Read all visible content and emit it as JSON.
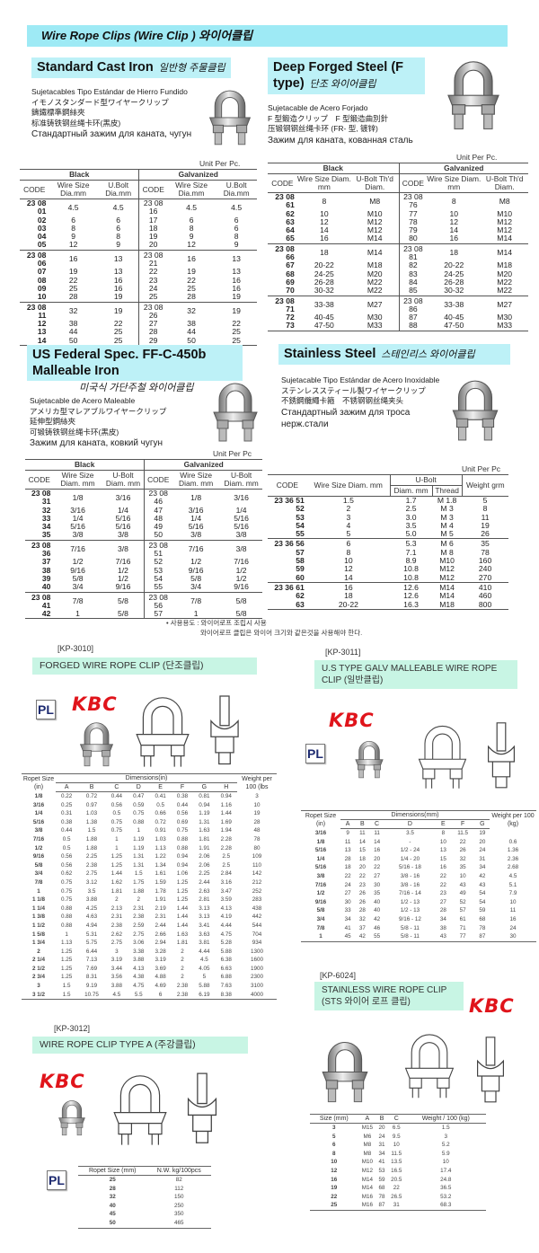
{
  "banner": {
    "title": "Wire Rope Clips  (Wire Clip ) 와이어클립"
  },
  "sections": [
    {
      "title": "Standard Cast Iron",
      "title_ko": "일반형 주물클립",
      "desc": [
        "Sujetacables Tipo Estándar de Hierro Fundido",
        "イモノスタンダード型ワイヤークリップ",
        "鑄鐵標準鋼絲夾",
        "标准铸铁钢丝绳卡环(黑皮)",
        "Стандартный зажим для каната, чугун"
      ],
      "unit": "Unit Per Pc.",
      "groups": [
        "Black",
        "Galvanized"
      ],
      "headers": [
        "CODE",
        "Wire Size Dia.mm",
        "U.Bolt Dia.mm",
        "CODE",
        "Wire Size Dia.mm",
        "U.Bolt Dia.mm"
      ],
      "blocks": [
        [
          [
            "23 08 01",
            "4.5",
            "4.5",
            "23 08 16",
            "4.5",
            "4.5"
          ],
          [
            "02",
            "6",
            "6",
            "17",
            "6",
            "6"
          ],
          [
            "03",
            "8",
            "6",
            "18",
            "8",
            "6"
          ],
          [
            "04",
            "9",
            "8",
            "19",
            "9",
            "8"
          ],
          [
            "05",
            "12",
            "9",
            "20",
            "12",
            "9"
          ]
        ],
        [
          [
            "23 08 06",
            "16",
            "13",
            "23 08 21",
            "16",
            "13"
          ],
          [
            "07",
            "19",
            "13",
            "22",
            "19",
            "13"
          ],
          [
            "08",
            "22",
            "16",
            "23",
            "22",
            "16"
          ],
          [
            "09",
            "25",
            "16",
            "24",
            "25",
            "16"
          ],
          [
            "10",
            "28",
            "19",
            "25",
            "28",
            "19"
          ]
        ],
        [
          [
            "23 08 11",
            "32",
            "19",
            "23 08 26",
            "32",
            "19"
          ],
          [
            "12",
            "38",
            "22",
            "27",
            "38",
            "22"
          ],
          [
            "13",
            "44",
            "25",
            "28",
            "44",
            "25"
          ],
          [
            "14",
            "50",
            "25",
            "29",
            "50",
            "25"
          ]
        ]
      ]
    },
    {
      "title": "Deep Forged Steel (F type)",
      "title_ko": "단조 와이어클립",
      "desc": [
        "Sujetacable de Acero Forjado",
        "F 型鍛造クリップ　F 型鍛造曲別針",
        "压锻钢钢丝绳卡环 (FR- 型, 镀锌)",
        "Зажим для каната, кованная сталь"
      ],
      "unit": "Unit Per Pc.",
      "groups": [
        "Black",
        "Galvanized"
      ],
      "headers": [
        "CODE",
        "Wire Size Diam. mm",
        "U-Bolt Th'd Diam.",
        "CODE",
        "Wire Size Diam. mm",
        "U-Bolt Th'd Diam."
      ],
      "blocks": [
        [
          [
            "23 08 61",
            "8",
            "M8",
            "23 08 76",
            "8",
            "M8"
          ],
          [
            "62",
            "10",
            "M10",
            "77",
            "10",
            "M10"
          ],
          [
            "63",
            "12",
            "M12",
            "78",
            "12",
            "M12"
          ],
          [
            "64",
            "14",
            "M12",
            "79",
            "14",
            "M12"
          ],
          [
            "65",
            "16",
            "M14",
            "80",
            "16",
            "M14"
          ]
        ],
        [
          [
            "23 08 66",
            "18",
            "M14",
            "23 08 81",
            "18",
            "M14"
          ],
          [
            "67",
            "20-22",
            "M18",
            "82",
            "20-22",
            "M18"
          ],
          [
            "68",
            "24-25",
            "M20",
            "83",
            "24-25",
            "M20"
          ],
          [
            "69",
            "26-28",
            "M22",
            "84",
            "26-28",
            "M22"
          ],
          [
            "70",
            "30-32",
            "M22",
            "85",
            "30-32",
            "M22"
          ]
        ],
        [
          [
            "23 08 71",
            "33-38",
            "M27",
            "23 08 86",
            "33-38",
            "M27"
          ],
          [
            "72",
            "40-45",
            "M30",
            "87",
            "40-45",
            "M30"
          ],
          [
            "73",
            "47-50",
            "M33",
            "88",
            "47-50",
            "M33"
          ]
        ]
      ]
    },
    {
      "title": "US Federal Spec. FF-C-450b Malleable Iron",
      "title_ko": "미국식 가단주철 와이어클립",
      "desc": [
        "Sujetacable de Acero Maleable",
        "アメリカ型マレアブルワイヤークリップ",
        "延伸型鋼絲夾",
        "可锻铸铁钢丝绳卡环(黑皮)",
        "Зажим для каната, ковкий чугун"
      ],
      "unit": "Unit Per Pc",
      "groups": [
        "Black",
        "Galvanized"
      ],
      "headers": [
        "CODE",
        "Wire Size Diam. mm",
        "U-Bolt Diam. mm",
        "CODE",
        "Wire Size Diam. mm",
        "U-Bolt Diam. mm"
      ],
      "blocks": [
        [
          [
            "23 08 31",
            "1/8",
            "3/16",
            "23 08 46",
            "1/8",
            "3/16"
          ],
          [
            "32",
            "3/16",
            "1/4",
            "47",
            "3/16",
            "1/4"
          ],
          [
            "33",
            "1/4",
            "5/16",
            "48",
            "1/4",
            "5/16"
          ],
          [
            "34",
            "5/16",
            "5/16",
            "49",
            "5/16",
            "5/16"
          ],
          [
            "35",
            "3/8",
            "3/8",
            "50",
            "3/8",
            "3/8"
          ]
        ],
        [
          [
            "23 08 36",
            "7/16",
            "3/8",
            "23 08 51",
            "7/16",
            "3/8"
          ],
          [
            "37",
            "1/2",
            "7/16",
            "52",
            "1/2",
            "7/16"
          ],
          [
            "38",
            "9/16",
            "1/2",
            "53",
            "9/16",
            "1/2"
          ],
          [
            "39",
            "5/8",
            "1/2",
            "54",
            "5/8",
            "1/2"
          ],
          [
            "40",
            "3/4",
            "9/16",
            "55",
            "3/4",
            "9/16"
          ]
        ],
        [
          [
            "23 08 41",
            "7/8",
            "5/8",
            "23 08 56",
            "7/8",
            "5/8"
          ],
          [
            "42",
            "1",
            "5/8",
            "57",
            "1",
            "5/8"
          ]
        ]
      ]
    },
    {
      "title": "Stainless Steel",
      "title_ko": "스테인리스 와이어클립",
      "desc": [
        "Sujetacable Tipo Estándar de Acero Inoxidable",
        "ステンレススティール製ワイヤークリップ",
        "不銹鋼纜繩卡箍　不锈钢钢丝绳夹头",
        "Стандартный зажим для троса нерж.стали"
      ],
      "unit": "Unit Per Pc",
      "headers": {
        "code": "CODE",
        "wire": "Wire Size Diam. mm",
        "ubolt": "U-Bolt",
        "ubolt_diam": "Diam. mm",
        "thread": "Thread",
        "weight": "Weight grm"
      },
      "blocks": [
        [
          [
            "23 36 51",
            "1.5",
            "1.7",
            "M 1.8",
            "5"
          ],
          [
            "52",
            "2",
            "2.5",
            "M 3",
            "8"
          ],
          [
            "53",
            "3",
            "3.0",
            "M 3",
            "11"
          ],
          [
            "54",
            "4",
            "3.5",
            "M 4",
            "19"
          ],
          [
            "55",
            "5",
            "5.0",
            "M 5",
            "26"
          ]
        ],
        [
          [
            "23 36 56",
            "6",
            "5.3",
            "M 6",
            "35"
          ],
          [
            "57",
            "8",
            "7.1",
            "M 8",
            "78"
          ],
          [
            "58",
            "10",
            "8.9",
            "M10",
            "160"
          ],
          [
            "59",
            "12",
            "10.8",
            "M12",
            "240"
          ],
          [
            "60",
            "14",
            "10.8",
            "M12",
            "270"
          ]
        ],
        [
          [
            "23 36 61",
            "16",
            "12.6",
            "M14",
            "410"
          ],
          [
            "62",
            "18",
            "12.6",
            "M14",
            "460"
          ],
          [
            "63",
            "20-22",
            "16.3",
            "M18",
            "800"
          ]
        ]
      ]
    }
  ],
  "note": {
    "line1": "• 사용용도 : 와이어로프 조립시 사용",
    "line2": "와이어로프 클립은 와이어 크기와 같은것을 사용해야 한다."
  },
  "logos": {
    "kbc": "KBC",
    "pl": "PL"
  },
  "kp3010": {
    "code": "[KP-3010]",
    "title": "FORGED WIRE ROPE CLIP (단조클립)",
    "size_header": "Ropet Size (in)",
    "dims_header": "Dimensions(in)",
    "weight_header": "Weight per 100 (lbs",
    "cols": [
      "A",
      "B",
      "C",
      "D",
      "E",
      "F",
      "G",
      "H"
    ],
    "rows": [
      [
        "1/8",
        "0.22",
        "0.72",
        "0.44",
        "0.47",
        "0.41",
        "0.38",
        "0.81",
        "0.94",
        "3"
      ],
      [
        "3/16",
        "0.25",
        "0.97",
        "0.56",
        "0.59",
        "0.5",
        "0.44",
        "0.94",
        "1.16",
        "10"
      ],
      [
        "1/4",
        "0.31",
        "1.03",
        "0.5",
        "0.75",
        "0.66",
        "0.56",
        "1.19",
        "1.44",
        "19"
      ],
      [
        "5/16",
        "0.38",
        "1.38",
        "0.75",
        "0.88",
        "0.72",
        "0.69",
        "1.31",
        "1.69",
        "28"
      ],
      [
        "3/8",
        "0.44",
        "1.5",
        "0.75",
        "1",
        "0.91",
        "0.75",
        "1.63",
        "1.94",
        "48"
      ],
      [
        "7/16",
        "0.5",
        "1.88",
        "1",
        "1.19",
        "1.03",
        "0.88",
        "1.81",
        "2.28",
        "78"
      ],
      [
        "1/2",
        "0.5",
        "1.88",
        "1",
        "1.19",
        "1.13",
        "0.88",
        "1.91",
        "2.28",
        "80"
      ],
      [
        "9/16",
        "0.56",
        "2.25",
        "1.25",
        "1.31",
        "1.22",
        "0.94",
        "2.06",
        "2.5",
        "109"
      ],
      [
        "5/8",
        "0.56",
        "2.38",
        "1.25",
        "1.31",
        "1.34",
        "0.94",
        "2.06",
        "2.5",
        "110"
      ],
      [
        "3/4",
        "0.62",
        "2.75",
        "1.44",
        "1.5",
        "1.61",
        "1.06",
        "2.25",
        "2.84",
        "142"
      ],
      [
        "7/8",
        "0.75",
        "3.12",
        "1.62",
        "1.75",
        "1.59",
        "1.25",
        "2.44",
        "3.16",
        "212"
      ],
      [
        "1",
        "0.75",
        "3.5",
        "1.81",
        "1.88",
        "1.78",
        "1.25",
        "2.63",
        "3.47",
        "252"
      ],
      [
        "1 1/8",
        "0.75",
        "3.88",
        "2",
        "2",
        "1.91",
        "1.25",
        "2.81",
        "3.59",
        "283"
      ],
      [
        "1 1/4",
        "0.88",
        "4.25",
        "2.13",
        "2.31",
        "2.19",
        "1.44",
        "3.13",
        "4.13",
        "438"
      ],
      [
        "1 3/8",
        "0.88",
        "4.63",
        "2.31",
        "2.38",
        "2.31",
        "1.44",
        "3.13",
        "4.19",
        "442"
      ],
      [
        "1 1/2",
        "0.88",
        "4.94",
        "2.38",
        "2.59",
        "2.44",
        "1.44",
        "3.41",
        "4.44",
        "544"
      ],
      [
        "1 5/8",
        "1",
        "5.31",
        "2.62",
        "2.75",
        "2.66",
        "1.63",
        "3.63",
        "4.75",
        "704"
      ],
      [
        "1 3/4",
        "1.13",
        "5.75",
        "2.75",
        "3.06",
        "2.94",
        "1.81",
        "3.81",
        "5.28",
        "934"
      ],
      [
        "2",
        "1.25",
        "6.44",
        "3",
        "3.38",
        "3.28",
        "2",
        "4.44",
        "5.88",
        "1300"
      ],
      [
        "2 1/4",
        "1.25",
        "7.13",
        "3.19",
        "3.88",
        "3.19",
        "2",
        "4.5",
        "6.38",
        "1600"
      ],
      [
        "2 1/2",
        "1.25",
        "7.69",
        "3.44",
        "4.13",
        "3.69",
        "2",
        "4.05",
        "6.63",
        "1900"
      ],
      [
        "2 3/4",
        "1.25",
        "8.31",
        "3.56",
        "4.38",
        "4.88",
        "2",
        "5",
        "6.88",
        "2300"
      ],
      [
        "3",
        "1.5",
        "9.19",
        "3.88",
        "4.75",
        "4.69",
        "2.38",
        "5.88",
        "7.63",
        "3100"
      ],
      [
        "3 1/2",
        "1.5",
        "10.75",
        "4.5",
        "5.5",
        "6",
        "2.38",
        "6.19",
        "8.38",
        "4000"
      ]
    ]
  },
  "kp3011": {
    "code": "[KP-3011]",
    "title": "U.S TYPE GALV MALLEABLE WIRE ROPE CLIP (일반클립)",
    "size_header": "Ropet Size (in)",
    "dims_header": "Dimensions(mm)",
    "weight_header": "Weight per 100 (kg)",
    "cols": [
      "A",
      "B",
      "C",
      "D",
      "E",
      "F",
      "G"
    ],
    "rows": [
      [
        "3/16",
        "9",
        "11",
        "11",
        "3.5",
        "8",
        "11.5",
        "19",
        ""
      ],
      [
        "1/8",
        "11",
        "14",
        "14",
        "-",
        "10",
        "22",
        "20",
        "0.6"
      ],
      [
        "5/16",
        "13",
        "15",
        "16",
        "1/2 - 24",
        "13",
        "26",
        "24",
        "1.36"
      ],
      [
        "1/4",
        "28",
        "18",
        "20",
        "1/4 - 20",
        "15",
        "32",
        "31",
        "2.36"
      ],
      [
        "5/16",
        "18",
        "20",
        "22",
        "5/16 - 18",
        "16",
        "35",
        "34",
        "2.68"
      ],
      [
        "3/8",
        "22",
        "22",
        "27",
        "3/8 - 16",
        "22",
        "10",
        "42",
        "4.5"
      ],
      [
        "7/16",
        "24",
        "23",
        "30",
        "3/8 - 16",
        "22",
        "43",
        "43",
        "5.1"
      ],
      [
        "1/2",
        "27",
        "26",
        "35",
        "7/16 - 14",
        "23",
        "49",
        "54",
        "7.9"
      ],
      [
        "9/16",
        "30",
        "26",
        "40",
        "1/2 - 13",
        "27",
        "52",
        "54",
        "10"
      ],
      [
        "5/8",
        "33",
        "28",
        "40",
        "1/2 - 13",
        "28",
        "57",
        "59",
        "11"
      ],
      [
        "3/4",
        "34",
        "32",
        "42",
        "9/16 - 12",
        "34",
        "61",
        "68",
        "16"
      ],
      [
        "7/8",
        "41",
        "37",
        "46",
        "5/8 - 11",
        "38",
        "71",
        "78",
        "24"
      ],
      [
        "1",
        "45",
        "42",
        "55",
        "5/8 - 11",
        "43",
        "77",
        "87",
        "30"
      ]
    ]
  },
  "kp6024": {
    "code": "[KP-6024]",
    "title": "STAINLESS WIRE ROPE CLIP",
    "title2": "(STS 와이어 로프 클립)",
    "headers": [
      "Size (mm)",
      "A",
      "B",
      "C",
      "Weight / 100 (kg)"
    ],
    "rows": [
      [
        "3",
        "M15",
        "20",
        "6.5",
        "1.5"
      ],
      [
        "5",
        "M6",
        "24",
        "9.5",
        "3"
      ],
      [
        "6",
        "M8",
        "31",
        "10",
        "5.2"
      ],
      [
        "8",
        "M8",
        "34",
        "11.5",
        "5.9"
      ],
      [
        "10",
        "M10",
        "41",
        "13.5",
        "10"
      ],
      [
        "12",
        "M12",
        "53",
        "16.5",
        "17.4"
      ],
      [
        "16",
        "M14",
        "59",
        "20.5",
        "24.8"
      ],
      [
        "19",
        "M14",
        "68",
        "22",
        "36.5"
      ],
      [
        "22",
        "M16",
        "78",
        "26.5",
        "53.2"
      ],
      [
        "25",
        "M16",
        "87",
        "31",
        "68.3"
      ]
    ]
  },
  "kp3012": {
    "code": "[KP-3012]",
    "title": "WIRE ROPE CLIP TYPE A (주강클립)",
    "headers": [
      "Ropet Size (mm)",
      "N.W. kg/100pcs"
    ],
    "rows": [
      [
        "25",
        "82"
      ],
      [
        "28",
        "112"
      ],
      [
        "32",
        "150"
      ],
      [
        "40",
        "250"
      ],
      [
        "45",
        "350"
      ],
      [
        "50",
        "465"
      ]
    ]
  },
  "colors": {
    "banner": "#9eeaf5",
    "section_title_bg": "#bdf1f7",
    "kp_band": "#c8f5e4",
    "kbc_red": "#e0141b",
    "pl_navy": "#1d2a70"
  }
}
